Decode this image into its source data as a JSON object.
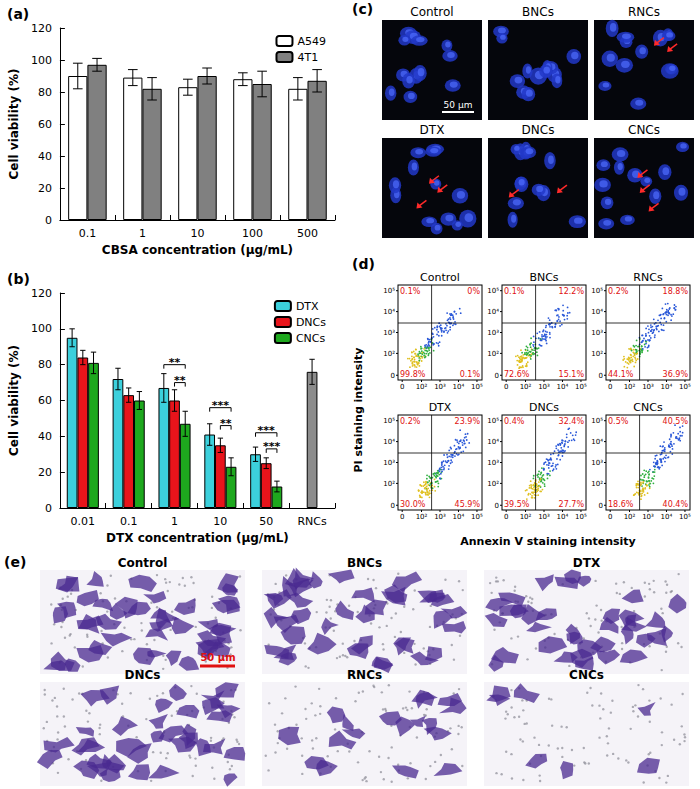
{
  "chart_data": [
    {
      "type": "bar",
      "title": "(a)",
      "x_label": "CBSA concentration (μg/mL)",
      "y_label": "Cell viability (%)",
      "categories": [
        "0.1",
        "1",
        "10",
        "100",
        "500"
      ],
      "series": [
        {
          "name": "A549",
          "color": "#ffffff",
          "values": [
            90,
            89,
            83,
            88,
            82
          ],
          "errors": [
            8,
            5,
            5,
            4,
            7
          ]
        },
        {
          "name": "4T1",
          "color": "#808080",
          "values": [
            97,
            82,
            90,
            85,
            87
          ],
          "errors": [
            4,
            7,
            5,
            8,
            7
          ]
        }
      ],
      "ylim": [
        0,
        120
      ],
      "yticks": [
        0,
        20,
        40,
        60,
        80,
        100,
        120
      ],
      "grid": false,
      "legend": "top-right"
    },
    {
      "type": "bar",
      "title": "(b)",
      "x_label": "DTX concentration (μg/mL)",
      "y_label": "Cell viability (%)",
      "categories": [
        "0.01",
        "0.1",
        "1",
        "10",
        "50",
        "RNCs"
      ],
      "series": [
        {
          "name": "DTX",
          "color": "#3cd0dc",
          "values": [
            95,
            72,
            67,
            41,
            30,
            null
          ],
          "errors": [
            5,
            6,
            8,
            6,
            4,
            null
          ]
        },
        {
          "name": "DNCs",
          "color": "#e8141b",
          "values": [
            84,
            63,
            60,
            35,
            25,
            null
          ],
          "errors": [
            4,
            4,
            6,
            4,
            3,
            null
          ]
        },
        {
          "name": "CNCs",
          "color": "#1ea81e",
          "values": [
            81,
            60,
            47,
            23,
            12,
            null
          ],
          "errors": [
            6,
            5,
            7,
            5,
            3,
            null
          ]
        },
        {
          "name": "RNCs",
          "color": "#8c8c8c",
          "values": [
            null,
            null,
            null,
            null,
            null,
            76
          ],
          "errors": [
            null,
            null,
            null,
            null,
            null,
            7
          ]
        }
      ],
      "annotations": [
        {
          "category": "1",
          "from": "DTX",
          "to": "CNCs",
          "y": 80,
          "text": "**"
        },
        {
          "category": "1",
          "from": "DNCs",
          "to": "CNCs",
          "y": 70,
          "text": "**"
        },
        {
          "category": "10",
          "from": "DTX",
          "to": "CNCs",
          "y": 56,
          "text": "***"
        },
        {
          "category": "10",
          "from": "DNCs",
          "to": "CNCs",
          "y": 46,
          "text": "**"
        },
        {
          "category": "50",
          "from": "DTX",
          "to": "CNCs",
          "y": 42,
          "text": "***"
        },
        {
          "category": "50",
          "from": "DNCs",
          "to": "CNCs",
          "y": 33,
          "text": "***"
        }
      ],
      "ylim": [
        0,
        120
      ],
      "yticks": [
        0,
        20,
        40,
        60,
        80,
        100,
        120
      ],
      "grid": false,
      "legend": "top-right"
    }
  ],
  "panels": {
    "c": {
      "title": "(c)",
      "images": [
        "Control",
        "BNCs",
        "RNCs",
        "DTX",
        "DNCs",
        "CNCs"
      ],
      "scale_bar": "50 μm"
    },
    "d": {
      "title": "(d)",
      "x_label": "Annexin V staining intensity",
      "y_label": "PI staining intensity",
      "x_ticks": [
        "0",
        "10²",
        "10³",
        "10⁴",
        "10⁵"
      ],
      "y_ticks": [
        "0",
        "10²",
        "10³",
        "10⁴",
        "10⁵"
      ],
      "plots": [
        {
          "label": "Control",
          "upper_left": "0.1%",
          "upper_right": "0%",
          "lower_left": "99.8%",
          "lower_right": "0.1%"
        },
        {
          "label": "BNCs",
          "upper_left": "0.1%",
          "upper_right": "12.2%",
          "lower_left": "72.6%",
          "lower_right": "15.1%"
        },
        {
          "label": "RNCs",
          "upper_left": "0.2%",
          "upper_right": "18.8%",
          "lower_left": "44.1%",
          "lower_right": "36.9%"
        },
        {
          "label": "DTX",
          "upper_left": "0.2%",
          "upper_right": "23.9%",
          "lower_left": "30.0%",
          "lower_right": "45.9%"
        },
        {
          "label": "DNCs",
          "upper_left": "0.4%",
          "upper_right": "32.4%",
          "lower_left": "39.5%",
          "lower_right": "27.7%"
        },
        {
          "label": "CNCs",
          "upper_left": "0.5%",
          "upper_right": "40.5%",
          "lower_left": "18.6%",
          "lower_right": "40.4%"
        }
      ]
    },
    "e": {
      "title": "(e)",
      "images": [
        "Control",
        "BNCs",
        "DTX",
        "DNCs",
        "RNCs",
        "CNCs"
      ],
      "scale_bar": "50 μm"
    }
  }
}
